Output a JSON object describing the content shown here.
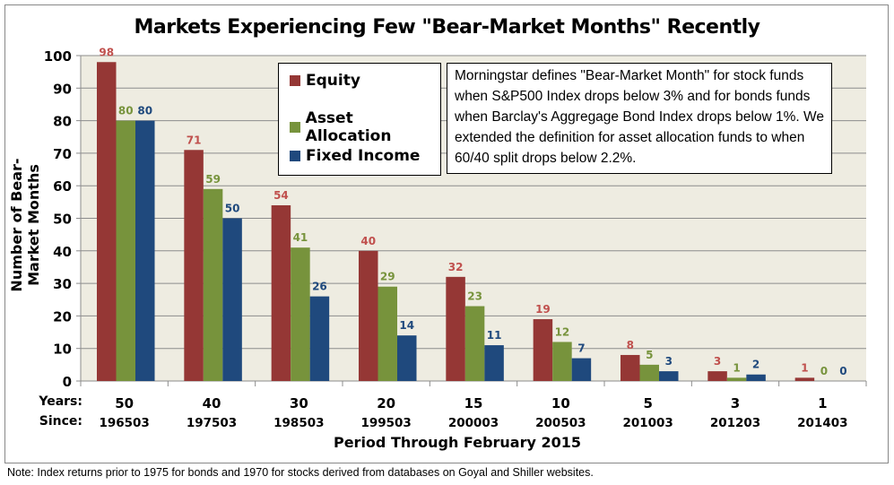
{
  "chart_data": {
    "type": "bar",
    "title": "Markets Experiencing Few \"Bear-Market Months\" Recently",
    "xlabel": "Period Through  February  2015",
    "ylabel": "Number of Bear-Market  Months",
    "ylim": [
      0,
      100
    ],
    "yticks": [
      0,
      10,
      20,
      30,
      40,
      50,
      60,
      70,
      80,
      90,
      100
    ],
    "grid": true,
    "legend_placement": "top-center",
    "row_labels": {
      "years": "Years:",
      "since": "Since:"
    },
    "categories": [
      "50",
      "40",
      "30",
      "20",
      "15",
      "10",
      "5",
      "3",
      "1"
    ],
    "since": [
      "196503",
      "197503",
      "198503",
      "199503",
      "200003",
      "200503",
      "201003",
      "201203",
      "201403"
    ],
    "series": [
      {
        "name": "Equity",
        "color": "#953735",
        "label_color": "#C0504D",
        "values": [
          98,
          71,
          54,
          40,
          32,
          19,
          8,
          3,
          1
        ]
      },
      {
        "name": "Asset Allocation",
        "color": "#77933C",
        "label_color": "#77933C",
        "values": [
          80,
          59,
          41,
          29,
          23,
          12,
          5,
          1,
          0
        ]
      },
      {
        "name": "Fixed Income",
        "color": "#1F497D",
        "label_color": "#1F497D",
        "values": [
          80,
          50,
          26,
          14,
          11,
          7,
          3,
          2,
          0
        ]
      }
    ],
    "plot_background": "#EEECE1",
    "annotation": "Morningstar defines \"Bear-Market Month\" for stock funds when S&P500 Index drops below 3% and for bonds funds when Barclay's Aggregage Bond Index drops  below 1%. We extended the definition for asset allocation funds to when 60/40 split drops below 2.2%.",
    "footnote": "Note: Index returns prior to 1975 for bonds and 1970 for stocks derived from databases on Goyal and Shiller websites."
  }
}
